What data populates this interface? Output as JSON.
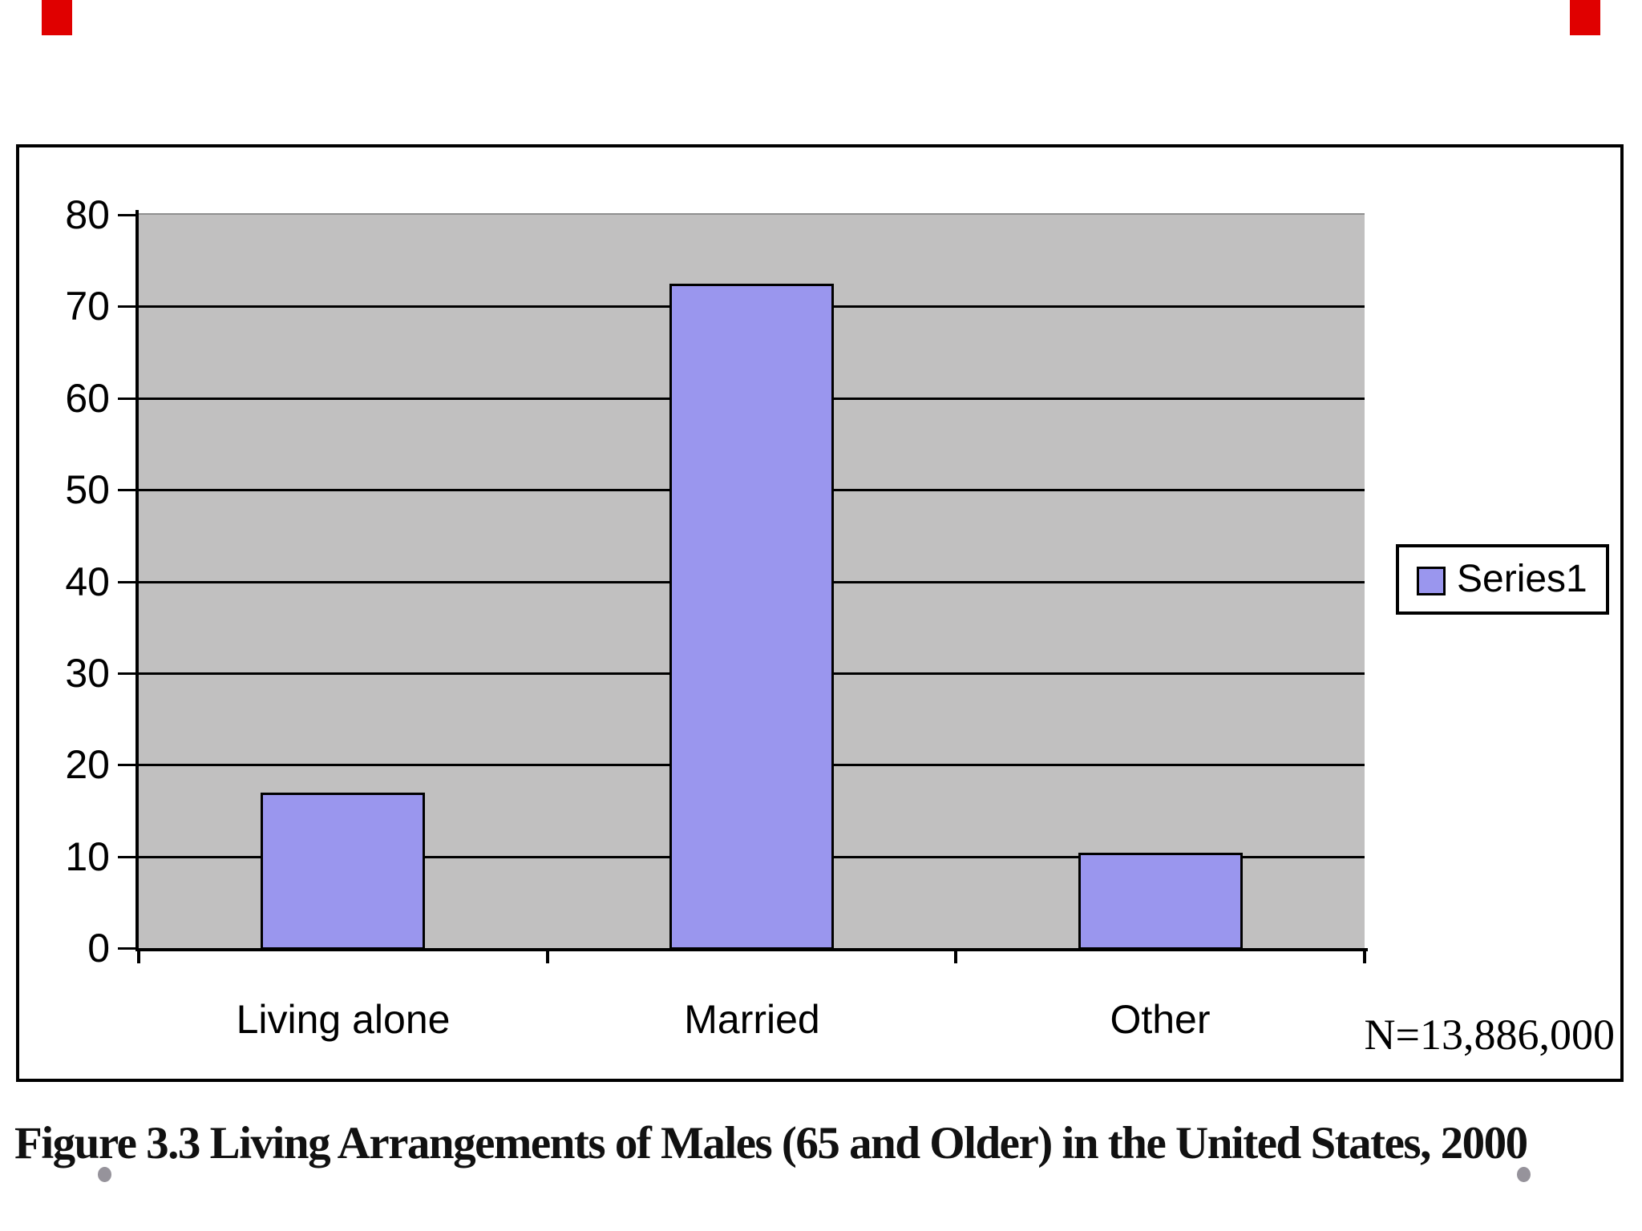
{
  "slide": {
    "caption": "Figure 3.3 Living Arrangements of Males (65 and Older) in the United States, 2000",
    "note": "N=13,886,000",
    "colors": {
      "bar_fill": "#9a96ee",
      "plot_background": "#c1c0c0",
      "chart_background": "#ffffff",
      "line": "#000000",
      "accent_red": "#e00000",
      "dot_gray": "#96939b"
    }
  },
  "chart_data": {
    "type": "bar",
    "title": "",
    "categories": [
      "Living alone",
      "Married",
      "Other"
    ],
    "series": [
      {
        "name": "Series1",
        "values": [
          17,
          72.5,
          10.4
        ]
      }
    ],
    "xlabel": "",
    "ylabel": "",
    "ylim": [
      0,
      80
    ],
    "yticks": [
      0,
      10,
      20,
      30,
      40,
      50,
      60,
      70,
      80
    ],
    "grid": "horizontal",
    "plot_area_color": "#c1c0c0",
    "bar_color": "#9a96ee",
    "legend_position": "right",
    "legend_entries": [
      "Series1"
    ],
    "annotation": "N=13,886,000"
  }
}
